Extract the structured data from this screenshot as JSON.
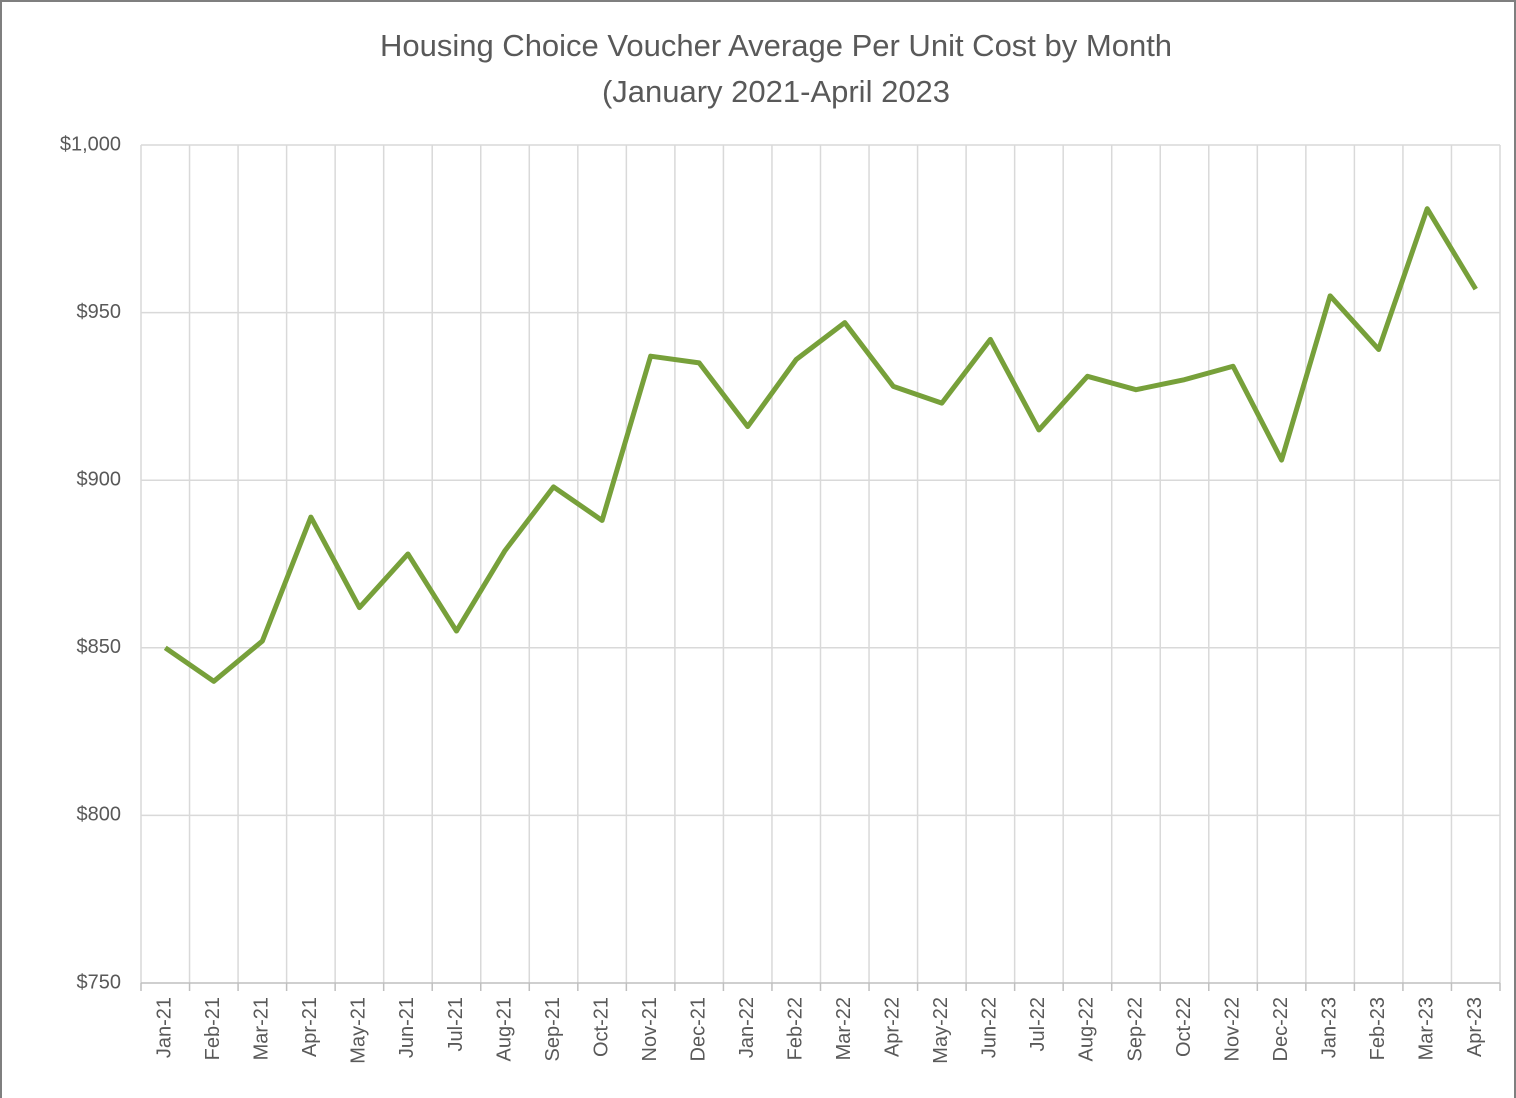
{
  "chart_data": {
    "type": "line",
    "title": [
      "Housing Choice Voucher Average Per Unit Cost by Month",
      "(January 2021-April 2023"
    ],
    "categories": [
      "Jan-21",
      "Feb-21",
      "Mar-21",
      "Apr-21",
      "May-21",
      "Jun-21",
      "Jul-21",
      "Aug-21",
      "Sep-21",
      "Oct-21",
      "Nov-21",
      "Dec-21",
      "Jan-22",
      "Feb-22",
      "Mar-22",
      "Apr-22",
      "May-22",
      "Jun-22",
      "Jul-22",
      "Aug-22",
      "Sep-22",
      "Oct-22",
      "Nov-22",
      "Dec-22",
      "Jan-23",
      "Feb-23",
      "Mar-23",
      "Apr-23"
    ],
    "series": [
      {
        "color": "#77a03a",
        "values": [
          850,
          840,
          852,
          889,
          862,
          878,
          855,
          879,
          898,
          888,
          937,
          935,
          916,
          936,
          947,
          928,
          923,
          942,
          915,
          931,
          927,
          930,
          934,
          906,
          955,
          939,
          981,
          957
        ]
      }
    ],
    "ylim": [
      750,
      1000
    ],
    "yticks": [
      {
        "value": 750,
        "label": "$750"
      },
      {
        "value": 800,
        "label": "$800"
      },
      {
        "value": 850,
        "label": "$850"
      },
      {
        "value": 900,
        "label": "$900"
      },
      {
        "value": 950,
        "label": "$950"
      },
      {
        "value": 1000,
        "label": "$1,000"
      }
    ],
    "grid": true
  }
}
